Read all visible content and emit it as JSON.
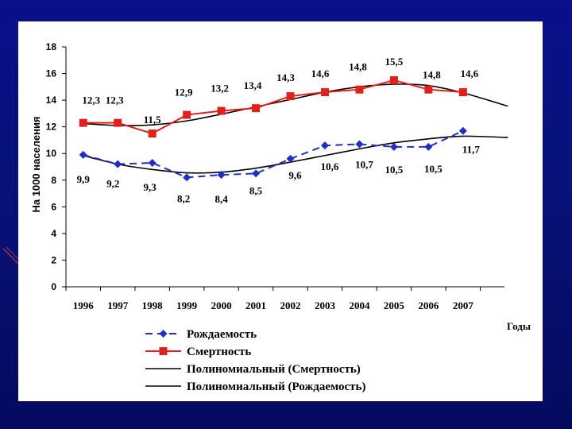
{
  "chart_data": {
    "type": "line",
    "ylabel": "На 1000 населения",
    "xlabel": "Годы",
    "ylim": [
      0,
      18
    ],
    "yticks": [
      0,
      2,
      4,
      6,
      8,
      10,
      12,
      14,
      16,
      18
    ],
    "categories": [
      "1996",
      "1997",
      "1998",
      "1999",
      "2000",
      "2001",
      "2002",
      "2003",
      "2004",
      "2005",
      "2006",
      "2007"
    ],
    "series": [
      {
        "name": "Рождаемость",
        "color": "#1f2fbf",
        "marker": "diamond",
        "dashed": true,
        "values": [
          9.9,
          9.2,
          9.3,
          8.2,
          8.4,
          8.5,
          9.6,
          10.6,
          10.7,
          10.5,
          10.5,
          11.7
        ],
        "labels": [
          "9,9",
          "9,2",
          "9,3",
          "8,2",
          "8,4",
          "8,5",
          "9,6",
          "10,6",
          "10,7",
          "10,5",
          "10,5",
          "11,7"
        ]
      },
      {
        "name": "Смертность",
        "color": "#e0201b",
        "marker": "square",
        "dashed": false,
        "values": [
          12.3,
          12.3,
          11.5,
          12.9,
          13.2,
          13.4,
          14.3,
          14.6,
          14.8,
          15.5,
          14.8,
          14.6
        ],
        "labels": [
          "12,3",
          "12,3",
          "11,5",
          "12,9",
          "13,2",
          "13,4",
          "14,3",
          "14,6",
          "14,8",
          "15,5",
          "14,8",
          "14,6"
        ]
      }
    ],
    "trendlines": [
      {
        "name": "Полиномиальный (Смертность)",
        "color": "#000000",
        "x": [
          0,
          1,
          2,
          3,
          4,
          5,
          6,
          7,
          8,
          9,
          10,
          11,
          12.3
        ],
        "values": [
          12.25,
          12.1,
          12.15,
          12.45,
          12.95,
          13.5,
          14.05,
          14.6,
          15.0,
          15.2,
          15.1,
          14.55,
          13.55
        ]
      },
      {
        "name": "Полиномиальный (Рождаемость)",
        "color": "#000000",
        "x": [
          0,
          1,
          2,
          3,
          4,
          5,
          6,
          7,
          8,
          9,
          10,
          11,
          12.3
        ],
        "values": [
          9.85,
          9.2,
          8.8,
          8.55,
          8.6,
          8.9,
          9.35,
          9.85,
          10.35,
          10.8,
          11.1,
          11.3,
          11.2
        ]
      }
    ],
    "legend": {
      "placement": "bottom",
      "items": [
        {
          "label": "Рождаемость",
          "style": "blue-dashed-diamond"
        },
        {
          "label": "Смертность",
          "style": "red-solid-square"
        },
        {
          "label": "Полиномиальный (Смертность)",
          "style": "black-line"
        },
        {
          "label": "Полиномиальный (Рождаемость)",
          "style": "black-line"
        }
      ]
    }
  }
}
